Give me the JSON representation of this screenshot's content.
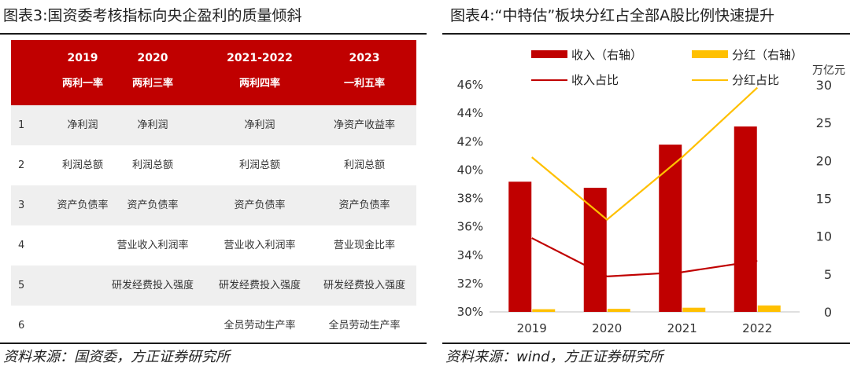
{
  "left": {
    "title": "图表3:国资委考核指标向央企盈利的质量倾斜",
    "footer": "资料来源：国资委，方正证券研究所",
    "columns": [
      {
        "year": "2019",
        "name": "两利一率"
      },
      {
        "year": "2020",
        "name": "两利三率"
      },
      {
        "year": "2021-2022",
        "name": "两利四率"
      },
      {
        "year": "2023",
        "name": "一利五率"
      }
    ],
    "rows": [
      {
        "num": "1",
        "cells": [
          "净利润",
          "净利润",
          "净利润",
          "净资产收益率"
        ]
      },
      {
        "num": "2",
        "cells": [
          "利润总额",
          "利润总额",
          "利润总额",
          "利润总额"
        ]
      },
      {
        "num": "3",
        "cells": [
          "资产负债率",
          "资产负债率",
          "资产负债率",
          "资产负债率"
        ]
      },
      {
        "num": "4",
        "cells": [
          "",
          "营业收入利润率",
          "营业收入利润率",
          "营业现金比率"
        ]
      },
      {
        "num": "5",
        "cells": [
          "",
          "研发经费投入强度",
          "研发经费投入强度",
          "研发经费投入强度"
        ]
      },
      {
        "num": "6",
        "cells": [
          "",
          "",
          "全员劳动生产率",
          "全员劳动生产率"
        ]
      }
    ],
    "colors": {
      "header": "#c00000",
      "stripe": "#efefef"
    }
  },
  "right": {
    "title": "图表4:“中特估”板块分红占全部A股比例快速提升",
    "footer": "资料来源：wind，方正证券研究所",
    "unit": "万亿元"
  },
  "chart_data": {
    "type": "bar",
    "categories": [
      "2019",
      "2020",
      "2021",
      "2022"
    ],
    "series": [
      {
        "name": "收入（右轴）",
        "kind": "bar",
        "axis": "right",
        "color": "#c00000",
        "values": [
          17.2,
          16.4,
          22.1,
          24.5
        ]
      },
      {
        "name": "分红（右轴）",
        "kind": "bar",
        "axis": "right",
        "color": "#ffc000",
        "values": [
          0.35,
          0.4,
          0.55,
          0.85
        ]
      },
      {
        "name": "收入占比",
        "kind": "line",
        "axis": "left",
        "color": "#c00000",
        "values": [
          35.2,
          32.5,
          32.8,
          33.6
        ]
      },
      {
        "name": "分红占比",
        "kind": "line",
        "axis": "left",
        "color": "#ffc000",
        "values": [
          40.9,
          36.5,
          40.9,
          45.8
        ]
      }
    ],
    "yleft": {
      "min": 30,
      "max": 46,
      "step": 2,
      "suffix": "%"
    },
    "yright": {
      "min": 0,
      "max": 30,
      "step": 5
    },
    "legend": "top",
    "grid": false
  }
}
